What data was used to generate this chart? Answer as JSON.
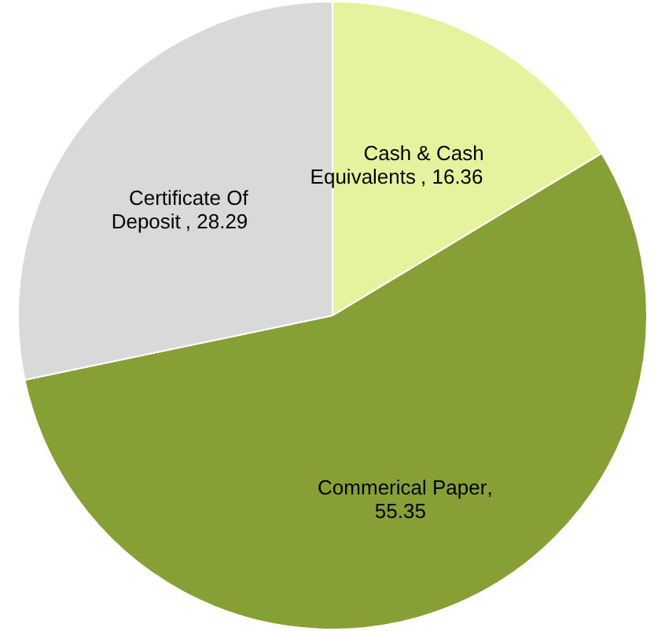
{
  "chart_data": {
    "type": "pie",
    "categories": [
      "Cash & Cash Equivalents ",
      "Commerical Paper",
      "Certificate Of Deposit"
    ],
    "values": [
      16.36,
      55.35,
      28.29
    ],
    "colors": [
      "#e6f29c",
      "#86a036",
      "#d9d9d9"
    ],
    "value_labels": [
      ", 16.36",
      ",\n55.35",
      ", 28.29"
    ]
  }
}
